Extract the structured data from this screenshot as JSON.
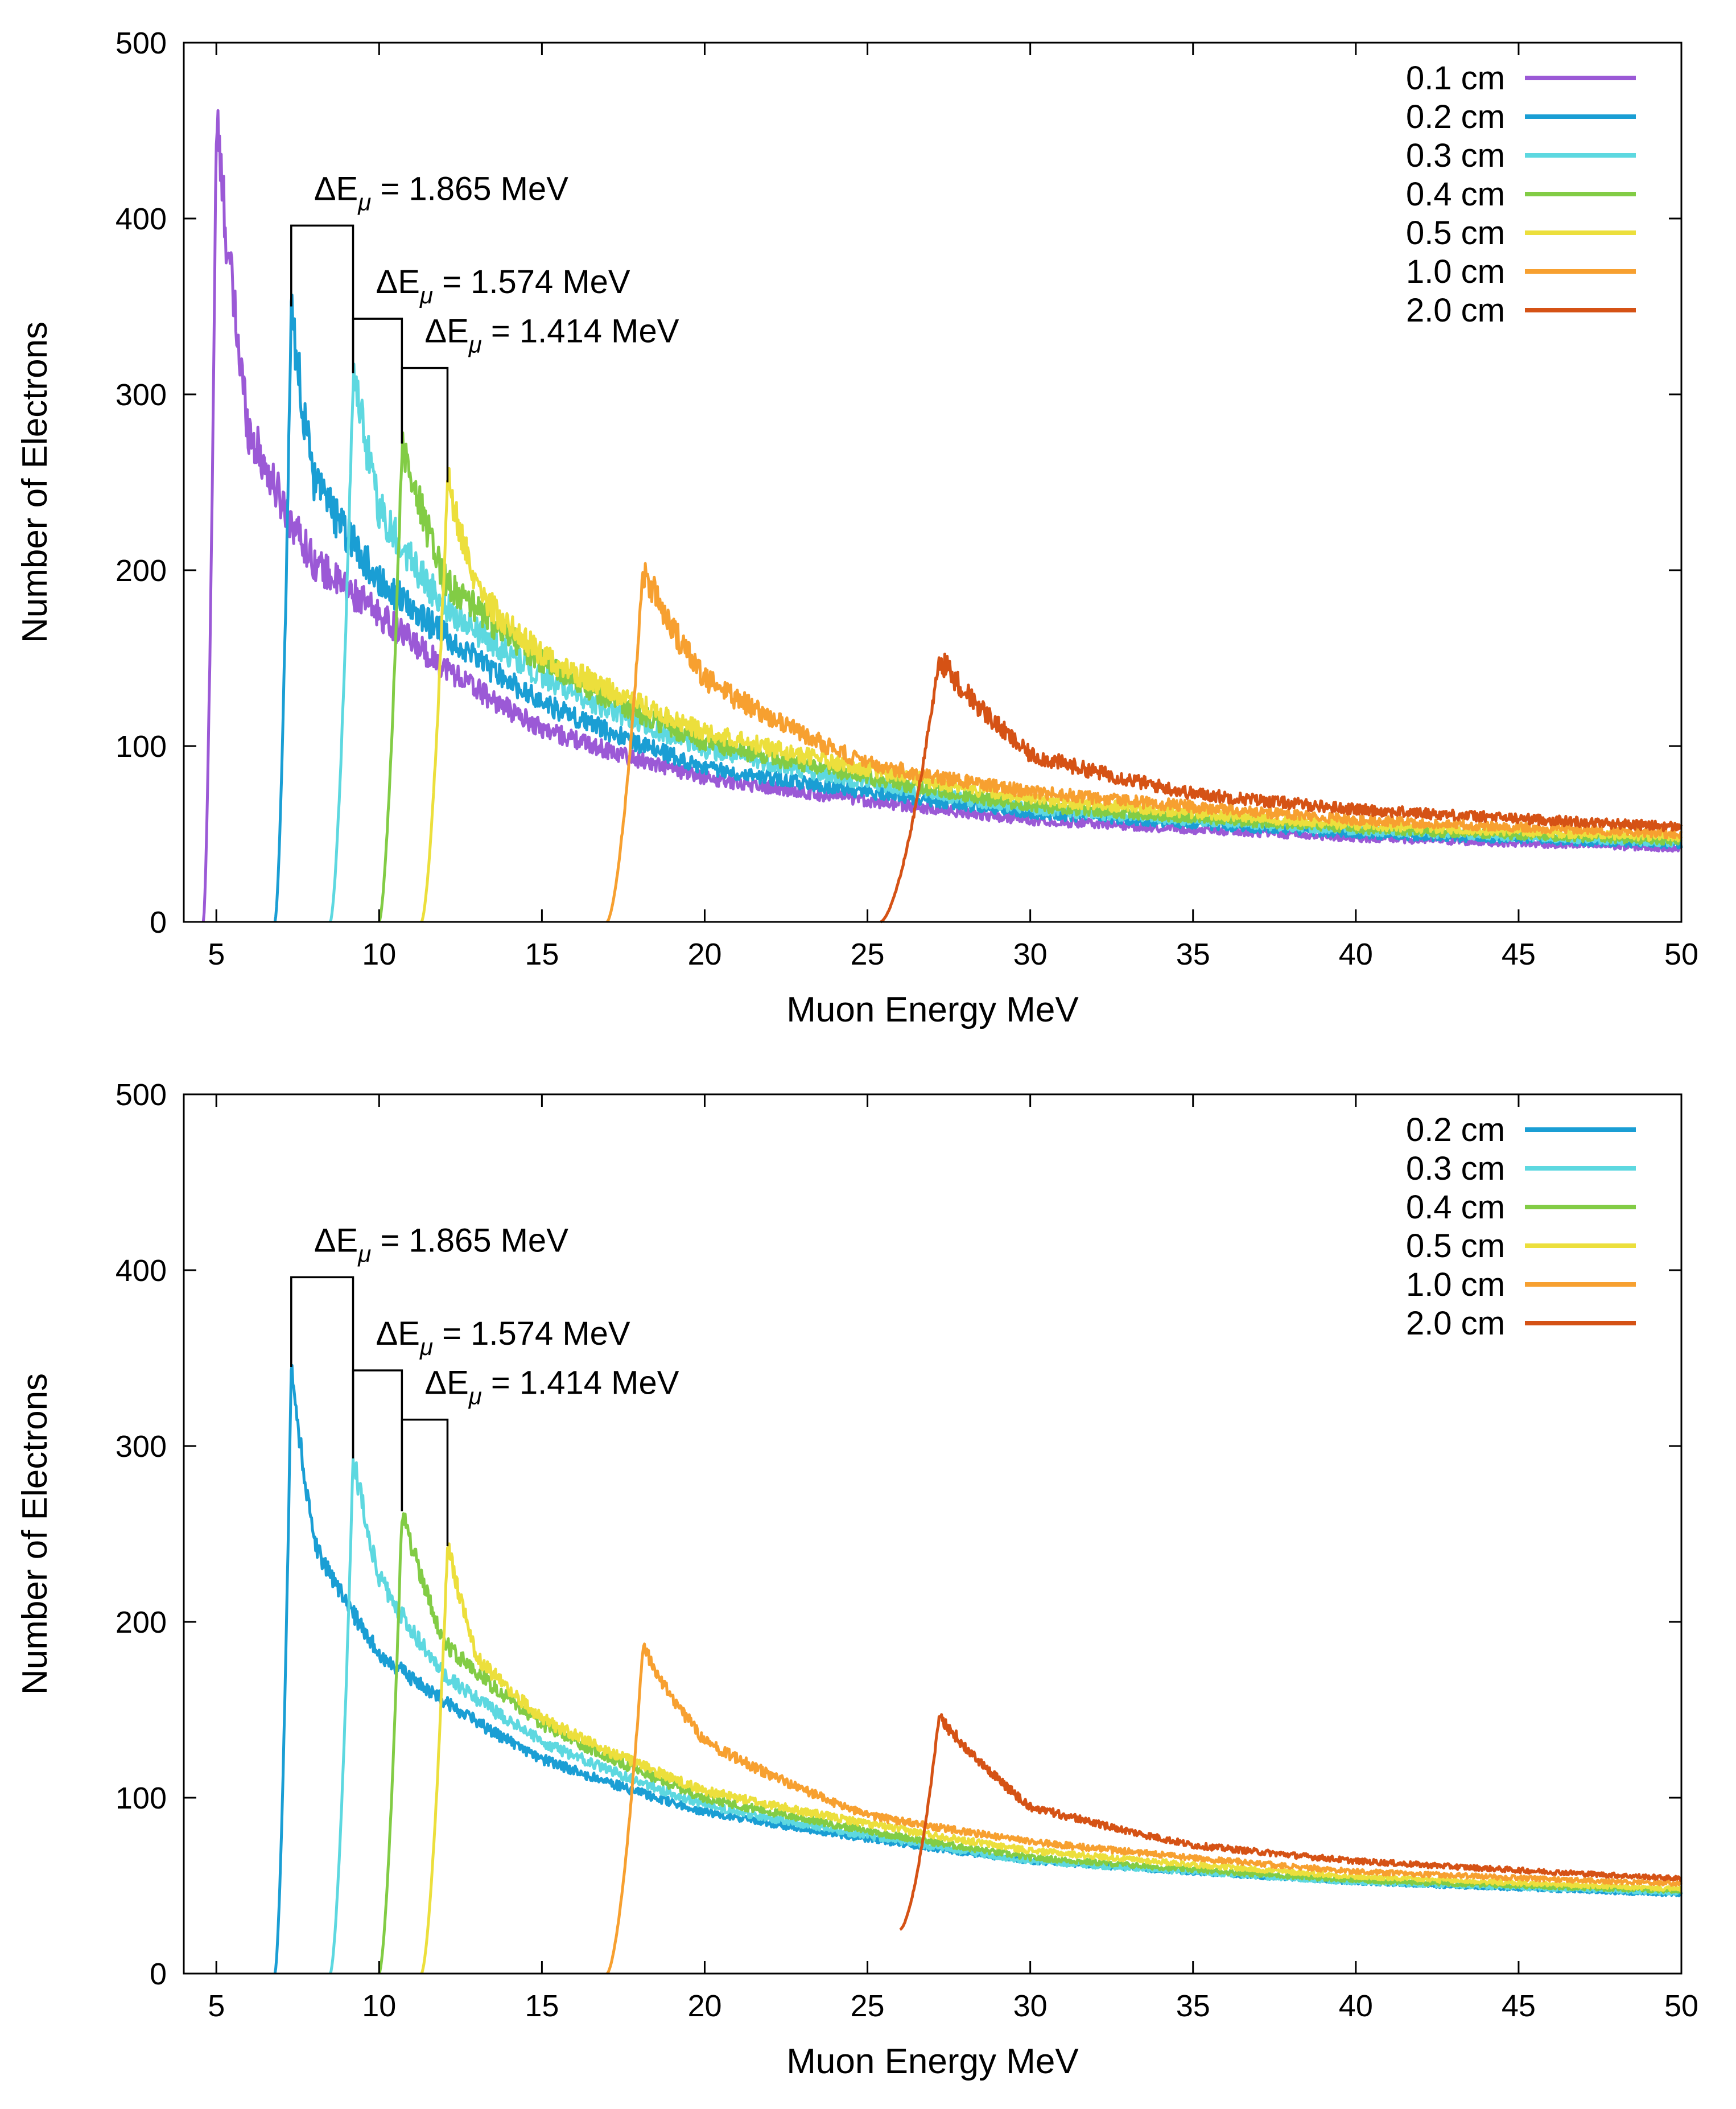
{
  "chart_data": [
    {
      "type": "line",
      "title": "",
      "xlabel": "Muon Energy MeV",
      "ylabel": "Number of Electrons",
      "xlim": [
        4,
        50
      ],
      "ylim": [
        0,
        500
      ],
      "xticks": [
        "5",
        "10",
        "15",
        "20",
        "25",
        "30",
        "35",
        "40",
        "45",
        "50"
      ],
      "yticks": [
        "0",
        "100",
        "200",
        "300",
        "400",
        "500"
      ],
      "grid": false,
      "legend_position": "top-right",
      "series": [
        {
          "name": "0.1 cm",
          "color": "#9b59d6",
          "onset": 4.6,
          "peak_x": 5.0,
          "peak_y": 455,
          "x": [
            4.6,
            5.0,
            6,
            8,
            10,
            15,
            20,
            30,
            40,
            50
          ],
          "values": [
            0,
            455,
            280,
            205,
            175,
            110,
            82,
            58,
            48,
            42
          ]
        },
        {
          "name": "0.2 cm",
          "color": "#1a9ed4",
          "onset": 6.8,
          "peak_x": 7.3,
          "peak_y": 350,
          "x": [
            6.8,
            7.3,
            8,
            10,
            15,
            20,
            30,
            40,
            50
          ],
          "values": [
            0,
            350,
            250,
            195,
            125,
            88,
            62,
            50,
            44
          ]
        },
        {
          "name": "0.3 cm",
          "color": "#5dd8e0",
          "onset": 8.5,
          "peak_x": 9.2,
          "peak_y": 312,
          "x": [
            8.5,
            9.2,
            10,
            12,
            15,
            20,
            30,
            40,
            50
          ],
          "values": [
            0,
            312,
            235,
            180,
            140,
            98,
            64,
            52,
            45
          ]
        },
        {
          "name": "0.4 cm",
          "color": "#82cc45",
          "onset": 10.0,
          "peak_x": 10.7,
          "peak_y": 272,
          "x": [
            10.0,
            10.7,
            12,
            15,
            20,
            30,
            40,
            50
          ],
          "values": [
            0,
            272,
            195,
            148,
            102,
            66,
            53,
            46
          ]
        },
        {
          "name": "0.5 cm",
          "color": "#ecdf3c",
          "onset": 11.3,
          "peak_x": 12.1,
          "peak_y": 250,
          "x": [
            11.3,
            12.1,
            13,
            15,
            20,
            30,
            40,
            50
          ],
          "values": [
            0,
            250,
            188,
            152,
            108,
            70,
            55,
            48
          ]
        },
        {
          "name": "1.0 cm",
          "color": "#f7a030",
          "onset": 17.0,
          "peak_x": 18.1,
          "peak_y": 200,
          "x": [
            17.0,
            18.1,
            20,
            25,
            30,
            40,
            50
          ],
          "values": [
            0,
            200,
            138,
            90,
            74,
            58,
            50
          ]
        },
        {
          "name": "2.0 cm",
          "color": "#d55215",
          "onset": 25.4,
          "peak_x": 27.2,
          "peak_y": 150,
          "x": [
            25.4,
            27.2,
            30,
            35,
            40,
            50
          ],
          "values": [
            0,
            150,
            95,
            73,
            64,
            54
          ]
        }
      ],
      "annotations": [
        {
          "label": "ΔEμ = 1.865 MeV",
          "prefix": "ΔE",
          "sub": "μ",
          "suffix": " = 1.865 MeV",
          "x1": 7.3,
          "x2": 9.2,
          "level": 396
        },
        {
          "label": "ΔEμ = 1.574 MeV",
          "prefix": "ΔE",
          "sub": "μ",
          "suffix": " = 1.574 MeV",
          "x1": 9.2,
          "x2": 10.7,
          "level": 343
        },
        {
          "label": "ΔEμ = 1.414 MeV",
          "prefix": "ΔE",
          "sub": "μ",
          "suffix": " = 1.414 MeV",
          "x1": 10.7,
          "x2": 12.1,
          "level": 315
        }
      ]
    },
    {
      "type": "line",
      "title": "",
      "xlabel": "Muon Energy MeV",
      "ylabel": "Number of Electrons",
      "xlim": [
        4,
        50
      ],
      "ylim": [
        0,
        500
      ],
      "xticks": [
        "5",
        "10",
        "15",
        "20",
        "25",
        "30",
        "35",
        "40",
        "45",
        "50"
      ],
      "yticks": [
        "0",
        "100",
        "200",
        "300",
        "400",
        "500"
      ],
      "grid": false,
      "legend_position": "top-right",
      "series": [
        {
          "name": "0.2 cm",
          "color": "#1a9ed4",
          "onset": 6.8,
          "peak_x": 7.3,
          "peak_y": 345,
          "x": [
            6.8,
            7.3,
            8,
            10,
            15,
            20,
            30,
            40,
            50
          ],
          "values": [
            0,
            345,
            245,
            182,
            122,
            92,
            64,
            52,
            45
          ]
        },
        {
          "name": "0.3 cm",
          "color": "#5dd8e0",
          "onset": 8.5,
          "peak_x": 9.2,
          "peak_y": 293,
          "x": [
            8.5,
            9.2,
            10,
            12,
            15,
            20,
            30,
            40,
            50
          ],
          "values": [
            0,
            293,
            225,
            170,
            132,
            96,
            64,
            52,
            46
          ]
        },
        {
          "name": "0.4 cm",
          "color": "#82cc45",
          "onset": 10.0,
          "peak_x": 10.7,
          "peak_y": 263,
          "x": [
            10.0,
            10.7,
            12,
            15,
            20,
            30,
            40,
            50
          ],
          "values": [
            0,
            263,
            188,
            142,
            100,
            66,
            53,
            47
          ]
        },
        {
          "name": "0.5 cm",
          "color": "#ecdf3c",
          "onset": 11.3,
          "peak_x": 12.1,
          "peak_y": 243,
          "x": [
            11.3,
            12.1,
            13,
            15,
            20,
            30,
            40,
            50
          ],
          "values": [
            0,
            243,
            180,
            145,
            104,
            70,
            55,
            48
          ]
        },
        {
          "name": "1.0 cm",
          "color": "#f7a030",
          "onset": 17.0,
          "peak_x": 18.1,
          "peak_y": 185,
          "x": [
            17.0,
            18.1,
            20,
            25,
            30,
            40,
            50
          ],
          "values": [
            0,
            185,
            132,
            90,
            75,
            58,
            51
          ]
        },
        {
          "name": "2.0 cm",
          "color": "#d55215",
          "onset": 26.0,
          "peak_x": 27.2,
          "peak_y": 146,
          "x": [
            26.0,
            27.2,
            30,
            35,
            40,
            50
          ],
          "values": [
            25,
            146,
            95,
            73,
            64,
            54
          ]
        }
      ],
      "annotations": [
        {
          "label": "ΔEμ = 1.865 MeV",
          "prefix": "ΔE",
          "sub": "μ",
          "suffix": " = 1.865 MeV",
          "x1": 7.3,
          "x2": 9.2,
          "level": 396
        },
        {
          "label": "ΔEμ = 1.574 MeV",
          "prefix": "ΔE",
          "sub": "μ",
          "suffix": " = 1.574 MeV",
          "x1": 9.2,
          "x2": 10.7,
          "level": 343
        },
        {
          "label": "ΔEμ = 1.414 MeV",
          "prefix": "ΔE",
          "sub": "μ",
          "suffix": " = 1.414 MeV",
          "x1": 10.7,
          "x2": 12.1,
          "level": 315
        }
      ]
    }
  ]
}
